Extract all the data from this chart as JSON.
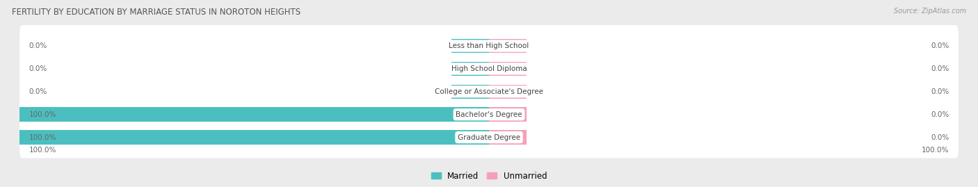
{
  "title": "FERTILITY BY EDUCATION BY MARRIAGE STATUS IN NOROTON HEIGHTS",
  "source": "Source: ZipAtlas.com",
  "categories": [
    "Less than High School",
    "High School Diploma",
    "College or Associate's Degree",
    "Bachelor's Degree",
    "Graduate Degree"
  ],
  "married": [
    0.0,
    0.0,
    0.0,
    100.0,
    100.0
  ],
  "unmarried": [
    0.0,
    0.0,
    0.0,
    0.0,
    0.0
  ],
  "married_color": "#4BBFBF",
  "unmarried_color": "#F5A0B8",
  "row_bg_color": "#FFFFFF",
  "outer_bg_color": "#EBEBEB",
  "title_color": "#555555",
  "label_color": "#444444",
  "value_color": "#666666",
  "source_color": "#999999",
  "max_val": 100.0,
  "min_bar_display": 8.0,
  "figsize": [
    14.06,
    2.69
  ],
  "dpi": 100
}
